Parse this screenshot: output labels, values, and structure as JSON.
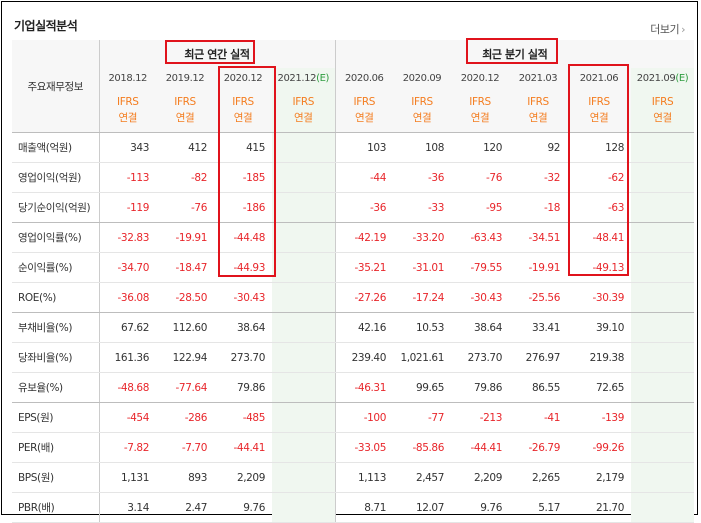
{
  "title": "기업실적분석",
  "more": {
    "label": "더보기",
    "chevron": "›"
  },
  "header": {
    "row_label": "주요재무정보",
    "annual_caption": "최근 연간 실적",
    "quarterly_caption": "최근 분기 실적",
    "annual_years": [
      "2018.12",
      "2019.12",
      "2020.12",
      "2021.12"
    ],
    "quarterly_years": [
      "2020.06",
      "2020.09",
      "2020.12",
      "2021.03",
      "2021.06",
      "2021.09"
    ],
    "estimate_marker": "(E)",
    "ifrs_top": "IFRS",
    "ifrs_bottom": "연결"
  },
  "rows": [
    {
      "label": "매출액(억원)",
      "annual": [
        "343",
        "412",
        "415",
        ""
      ],
      "quarterly": [
        "103",
        "108",
        "120",
        "92",
        "128",
        ""
      ]
    },
    {
      "label": "영업이익(억원)",
      "annual": [
        "-113",
        "-82",
        "-185",
        ""
      ],
      "quarterly": [
        "-44",
        "-36",
        "-76",
        "-32",
        "-62",
        ""
      ]
    },
    {
      "label": "당기순이익(억원)",
      "annual": [
        "-119",
        "-76",
        "-186",
        ""
      ],
      "quarterly": [
        "-36",
        "-33",
        "-95",
        "-18",
        "-63",
        ""
      ]
    },
    {
      "label": "영업이익률(%)",
      "annual": [
        "-32.83",
        "-19.91",
        "-44.48",
        ""
      ],
      "quarterly": [
        "-42.19",
        "-33.20",
        "-63.43",
        "-34.51",
        "-48.41",
        ""
      ]
    },
    {
      "label": "순이익률(%)",
      "annual": [
        "-34.70",
        "-18.47",
        "-44.93",
        ""
      ],
      "quarterly": [
        "-35.21",
        "-31.01",
        "-79.55",
        "-19.91",
        "-49.13",
        ""
      ]
    },
    {
      "label": "ROE(%)",
      "annual": [
        "-36.08",
        "-28.50",
        "-30.43",
        ""
      ],
      "quarterly": [
        "-27.26",
        "-17.24",
        "-30.43",
        "-25.56",
        "-30.39",
        ""
      ]
    },
    {
      "label": "부채비율(%)",
      "annual": [
        "67.62",
        "112.60",
        "38.64",
        ""
      ],
      "quarterly": [
        "42.16",
        "10.53",
        "38.64",
        "33.41",
        "39.10",
        ""
      ]
    },
    {
      "label": "당좌비율(%)",
      "annual": [
        "161.36",
        "122.94",
        "273.70",
        ""
      ],
      "quarterly": [
        "239.40",
        "1,021.61",
        "273.70",
        "276.97",
        "219.38",
        ""
      ]
    },
    {
      "label": "유보율(%)",
      "annual": [
        "-48.68",
        "-77.64",
        "79.86",
        ""
      ],
      "quarterly": [
        "-46.31",
        "99.65",
        "79.86",
        "86.55",
        "72.65",
        ""
      ]
    },
    {
      "label": "EPS(원)",
      "annual": [
        "-454",
        "-286",
        "-485",
        ""
      ],
      "quarterly": [
        "-100",
        "-77",
        "-213",
        "-41",
        "-139",
        ""
      ]
    },
    {
      "label": "PER(배)",
      "annual": [
        "-7.82",
        "-7.70",
        "-44.41",
        ""
      ],
      "quarterly": [
        "-33.05",
        "-85.86",
        "-44.41",
        "-26.79",
        "-99.26",
        ""
      ]
    },
    {
      "label": "BPS(원)",
      "annual": [
        "1,131",
        "893",
        "2,209",
        ""
      ],
      "quarterly": [
        "1,113",
        "2,457",
        "2,209",
        "2,265",
        "2,179",
        ""
      ]
    },
    {
      "label": "PBR(배)",
      "annual": [
        "3.14",
        "2.47",
        "9.76",
        ""
      ],
      "quarterly": [
        "8.71",
        "12.07",
        "9.76",
        "5.17",
        "21.70",
        ""
      ]
    }
  ],
  "colors": {
    "negative": "#e8262b",
    "ifrs": "#f47d20",
    "highlight_box": "#e0131c",
    "estimate_bg": "#f0f7f0",
    "estimate_marker": "#2e9d3f"
  }
}
